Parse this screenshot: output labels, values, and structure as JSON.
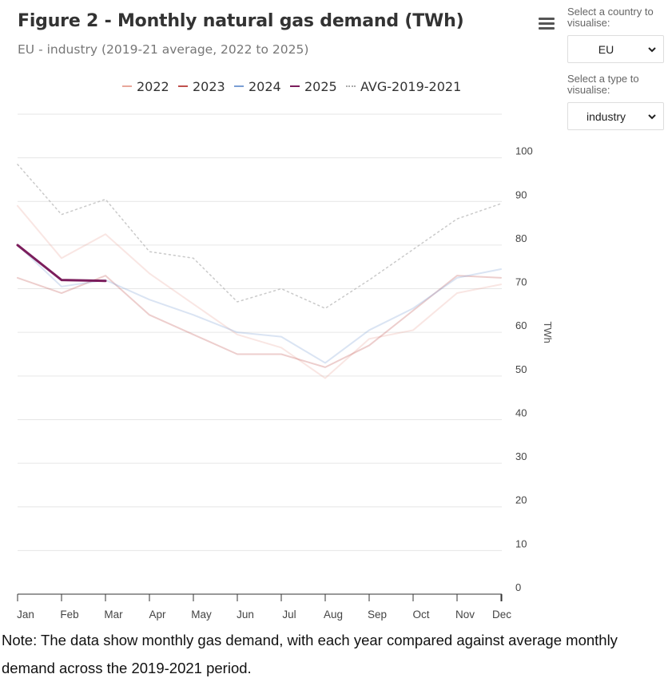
{
  "header": {
    "title": "Figure 2 - Monthly natural gas demand (TWh)",
    "subtitle": "EU - industry (2019-21 average, 2022 to 2025)"
  },
  "controls": {
    "country_label": "Select a country to visualise:",
    "country_value": "EU",
    "type_label": "Select a type to visualise:",
    "type_value": "industry",
    "menu_icon": "hamburger-menu-icon"
  },
  "note": "Note: The data show monthly gas demand, with each year compared against average monthly demand across the 2019-2021 period.",
  "chart_data": {
    "type": "line",
    "title": "Figure 2 - Monthly natural gas demand (TWh)",
    "subtitle": "EU - industry (2019-21 average, 2022 to 2025)",
    "xlabel": "",
    "ylabel": "TWh",
    "ylim": [
      0,
      110
    ],
    "yticks": [
      0,
      10,
      20,
      30,
      40,
      50,
      60,
      70,
      80,
      90,
      100
    ],
    "y_axis_position": "right",
    "grid": true,
    "legend_position": "top",
    "categories": [
      "Jan",
      "Feb",
      "Mar",
      "Apr",
      "May",
      "Jun",
      "Jul",
      "Aug",
      "Sep",
      "Oct",
      "Nov",
      "Dec"
    ],
    "series": [
      {
        "name": "2022",
        "color": "#e8a79b",
        "style": "solid",
        "faded": true,
        "values": [
          89,
          77,
          82.5,
          73.5,
          66.5,
          59.5,
          56.5,
          49.5,
          58.5,
          60.5,
          69,
          71
        ]
      },
      {
        "name": "2023",
        "color": "#c0504d",
        "style": "solid",
        "faded": true,
        "values": [
          72.5,
          69,
          73,
          64,
          59.5,
          55,
          55,
          52,
          57,
          65,
          73,
          72.5
        ]
      },
      {
        "name": "2024",
        "color": "#7a9fd4",
        "style": "solid",
        "faded": true,
        "values": [
          80,
          70.5,
          72,
          67.5,
          64,
          60,
          59,
          53,
          60.5,
          65.5,
          72.5,
          74.5
        ]
      },
      {
        "name": "2025",
        "color": "#7b1d5c",
        "style": "solid",
        "faded": false,
        "values": [
          80,
          72,
          71.8,
          null,
          null,
          null,
          null,
          null,
          null,
          null,
          null,
          null
        ]
      },
      {
        "name": "AVG-2019-2021",
        "color": "#b8b8b8",
        "style": "dotted",
        "faded": true,
        "values": [
          98.5,
          87,
          90.5,
          78.5,
          77,
          67,
          70,
          65.5,
          72,
          79,
          86,
          89.5
        ]
      }
    ]
  }
}
